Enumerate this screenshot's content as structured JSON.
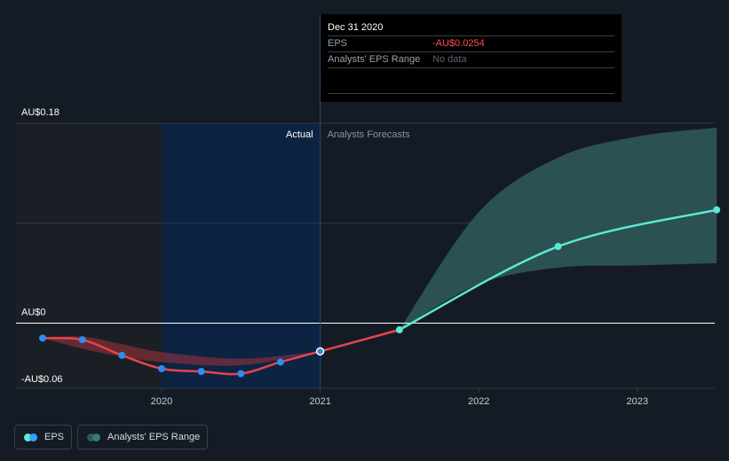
{
  "chart_data": {
    "type": "line",
    "title": "",
    "xlabel": "",
    "ylabel": "",
    "x_ticks": [
      {
        "label": "2020",
        "value": 2020.0
      },
      {
        "label": "2021",
        "value": 2021.0
      },
      {
        "label": "2022",
        "value": 2022.0
      },
      {
        "label": "2023",
        "value": 2023.0
      }
    ],
    "y_ticks": [
      {
        "label": "AU$0.18",
        "value": 0.18
      },
      {
        "label": "AU$0",
        "value": 0
      },
      {
        "label": "-AU$0.06",
        "value": -0.06
      }
    ],
    "xlim": [
      2019.15,
      2023.5
    ],
    "ylim": [
      -0.06,
      0.18
    ],
    "past_start": 2019.15,
    "actual_start": 2020.0,
    "actual_end": 2021.0,
    "section_labels": {
      "actual": "Actual",
      "forecast": "Analysts Forecasts"
    },
    "series": [
      {
        "name": "EPS",
        "color": "#e5454b",
        "points": [
          {
            "x": 2019.25,
            "y": -0.0135
          },
          {
            "x": 2019.5,
            "y": -0.015
          },
          {
            "x": 2019.75,
            "y": -0.029
          },
          {
            "x": 2020.0,
            "y": -0.041
          },
          {
            "x": 2020.25,
            "y": -0.0435
          },
          {
            "x": 2020.5,
            "y": -0.0455
          },
          {
            "x": 2020.75,
            "y": -0.035
          },
          {
            "x": 2021.0,
            "y": -0.0254
          },
          {
            "x": 2021.5,
            "y": -0.006
          }
        ]
      },
      {
        "name": "EPS Forecast",
        "color": "#5ce8d6",
        "points": [
          {
            "x": 2021.5,
            "y": -0.006
          },
          {
            "x": 2022.5,
            "y": 0.069
          },
          {
            "x": 2023.5,
            "y": 0.102
          }
        ]
      }
    ],
    "past_range_band": {
      "name": "Analysts' EPS Range (past)",
      "color": "#c0353e",
      "points": [
        {
          "x": 2019.25,
          "low": -0.0135,
          "high": -0.0135
        },
        {
          "x": 2019.5,
          "low": -0.023,
          "high": -0.012
        },
        {
          "x": 2019.75,
          "low": -0.03,
          "high": -0.019
        },
        {
          "x": 2020.0,
          "low": -0.035,
          "high": -0.026
        },
        {
          "x": 2020.5,
          "low": -0.038,
          "high": -0.032
        },
        {
          "x": 2021.0,
          "low": -0.0254,
          "high": -0.0254
        }
      ]
    },
    "forecast_range_band": {
      "name": "Analysts' EPS Range",
      "color": "#2f5a5a",
      "points": [
        {
          "x": 2021.5,
          "low": -0.006,
          "high": -0.006
        },
        {
          "x": 2022.0,
          "low": 0.035,
          "high": 0.1
        },
        {
          "x": 2022.5,
          "low": 0.05,
          "high": 0.149
        },
        {
          "x": 2023.0,
          "low": 0.052,
          "high": 0.168
        },
        {
          "x": 2023.5,
          "low": 0.054,
          "high": 0.176
        }
      ]
    },
    "highlight_point": {
      "x": 2021.0,
      "y": -0.0254
    }
  },
  "tooltip": {
    "date": "Dec 31 2020",
    "eps_label": "EPS",
    "eps_value": "-AU$0.0254",
    "range_label": "Analysts' EPS Range",
    "range_value": "No data"
  },
  "legend": {
    "eps_label": "EPS",
    "range_label": "Analysts' EPS Range",
    "eps_colors": [
      "#5ce8d6",
      "#3aa0ff"
    ],
    "range_colors": [
      "#2f5a5a",
      "#3a7a7a"
    ]
  },
  "colors": {
    "background": "#151b24",
    "past_shade": "#1a1f26",
    "actual_shade": "#0d2342",
    "grid": "#343a42",
    "axis_zero": "#ffffff",
    "eps_dot": "#2f8cf0",
    "forecast_dot": "#5ce8d6"
  }
}
